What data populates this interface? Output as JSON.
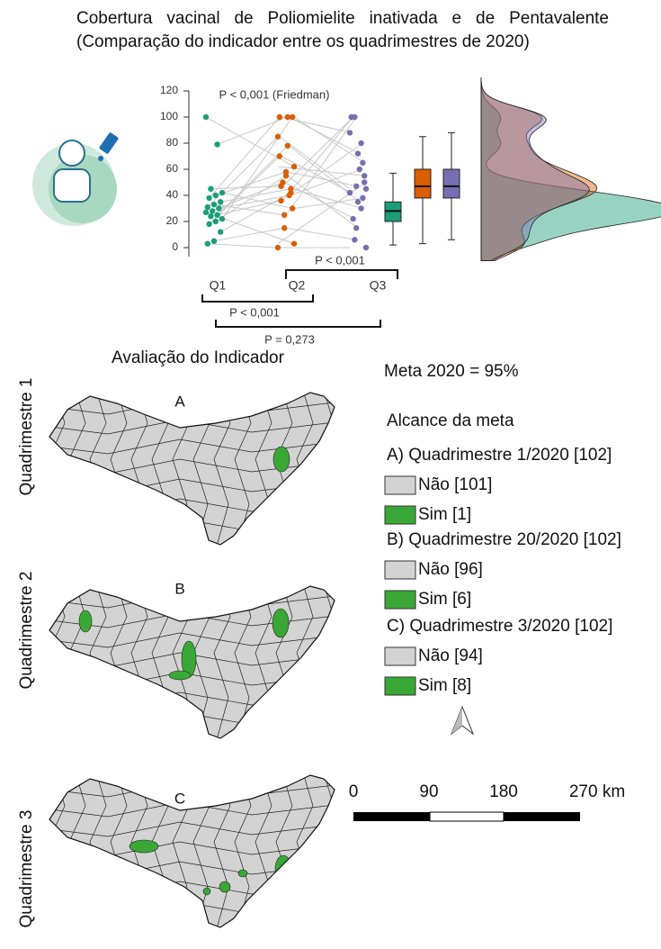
{
  "chart_data": {
    "type": "raincloud",
    "title": "Cobertura vacinal de Poliomielite inativada e de Pentavalente (Comparação do indicador entre os quadrimestres de 2020)",
    "categories": [
      "Q1",
      "Q2",
      "Q3"
    ],
    "colors": [
      "#1b9e77",
      "#d95f02",
      "#7570b3"
    ],
    "values": [
      [
        100,
        79,
        45,
        42,
        40,
        38,
        35,
        33,
        31,
        30,
        28,
        27,
        25,
        24,
        22,
        20,
        18,
        12,
        5,
        3
      ],
      [
        62,
        100,
        47,
        30,
        58,
        100,
        45,
        25,
        85,
        40,
        50,
        3,
        78,
        36,
        100,
        55,
        70,
        42,
        15,
        0
      ],
      [
        55,
        72,
        100,
        38,
        47,
        88,
        30,
        100,
        45,
        60,
        22,
        50,
        35,
        100,
        65,
        15,
        42,
        80,
        6,
        0
      ]
    ],
    "boxes": [
      {
        "whislo": 2,
        "q1": 20,
        "med": 28,
        "q3": 35,
        "whishi": 57
      },
      {
        "whislo": 3,
        "q1": 38,
        "med": 47,
        "q3": 60,
        "whishi": 85
      },
      {
        "whislo": 6,
        "q1": 38,
        "med": 47,
        "q3": 60,
        "whishi": 88
      }
    ],
    "ylim": [
      0,
      120
    ],
    "yticks": [
      0,
      20,
      40,
      60,
      80,
      100,
      120
    ],
    "annotations": [
      "P < 0,001 (Friedman)",
      "P < 0,001",
      "P < 0,001",
      "P = 0,273"
    ]
  },
  "maps": {
    "heading": "Avaliação do Indicador",
    "panels": [
      {
        "row_label": "Quadrimestre 1",
        "letter": "A"
      },
      {
        "row_label": "Quadrimestre 2",
        "letter": "B"
      },
      {
        "row_label": "Quadrimestre 3",
        "letter": "C"
      }
    ]
  },
  "legend": {
    "meta": "Meta 2020 = 95%",
    "title": "Alcance da meta",
    "groups": [
      {
        "label": "A) Quadrimestre 1/2020 [102]",
        "items": [
          "Não [101]",
          "Sim [1]"
        ]
      },
      {
        "label": "B) Quadrimestre 20/2020 [102]",
        "items": [
          "Não [96]",
          "Sim [6]"
        ]
      },
      {
        "label": "C) Quadrimestre 3/2020 [102]",
        "items": [
          "Não [94]",
          "Sim [8]"
        ]
      }
    ]
  },
  "scale_bar": {
    "labels": [
      "0",
      "90",
      "180",
      "270 km"
    ]
  }
}
